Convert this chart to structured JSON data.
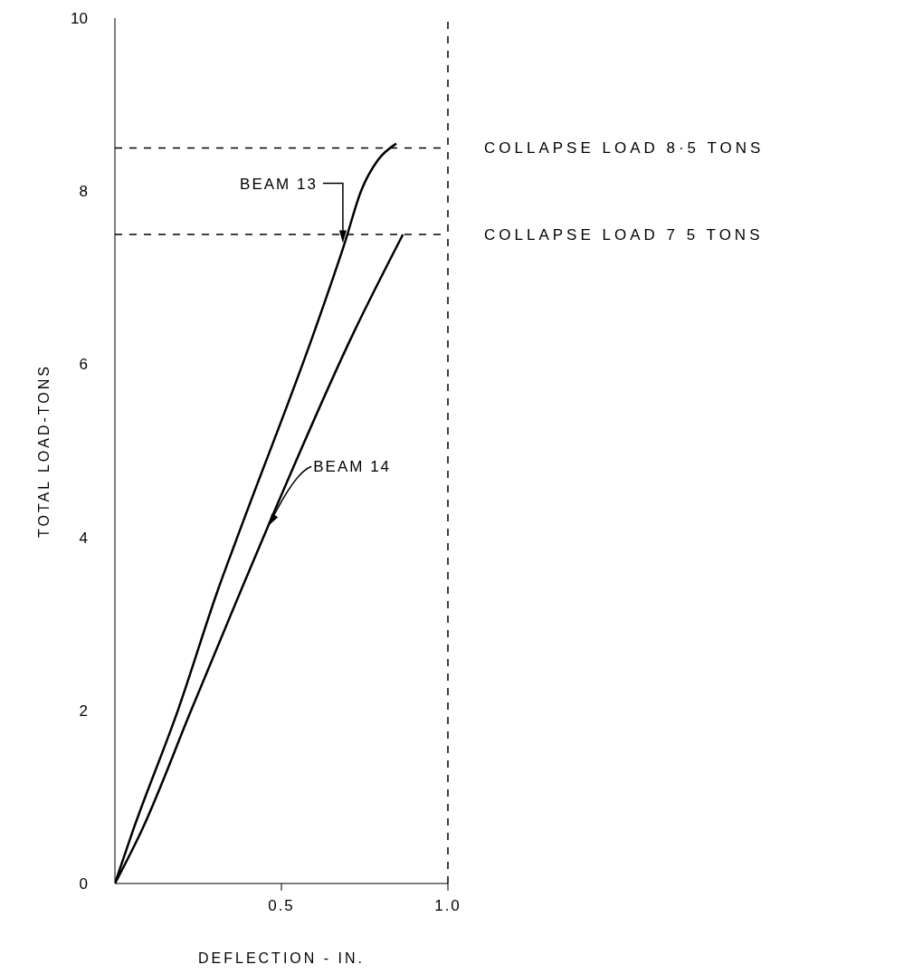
{
  "chart_data": {
    "type": "line",
    "xlabel": "DEFLECTION - IN.",
    "ylabel": "TOTAL LOAD-TONS",
    "xlim": [
      0,
      1
    ],
    "xticks": [
      {
        "value": 0.5,
        "label": "0.5"
      },
      {
        "value": 1,
        "label": "1.0"
      }
    ],
    "ylim": [
      0,
      10
    ],
    "yticks": [
      0,
      2,
      4,
      6,
      8,
      10
    ],
    "marker": "none",
    "line_style": "solid",
    "series": [
      {
        "color": "#000000",
        "x": [
          0,
          0.054,
          0.19,
          0.31,
          0.38,
          0.6,
          0.69,
          0.74,
          0.79,
          0.845
        ],
        "values": [
          0,
          0.61,
          2.01,
          3.4,
          4.13,
          6.39,
          7.4,
          8.01,
          8.36,
          8.55
        ]
      },
      {
        "color": "#000000",
        "x": [
          0,
          0.08,
          0.23,
          0.38,
          0.46,
          0.72,
          0.865
        ],
        "values": [
          0,
          0.61,
          2.01,
          3.4,
          4.13,
          6.39,
          7.5
        ]
      }
    ],
    "ref_lines": [
      {
        "axis": "y",
        "value": 8.5,
        "label": "COLLAPSE LOAD 8·5 TONS",
        "line_style": "dashed",
        "color": "#000000"
      },
      {
        "axis": "y",
        "value": 7.5,
        "label": "COLLAPSE LOAD 7 5 TONS",
        "line_style": "dashed",
        "color": "#000000"
      },
      {
        "axis": "x",
        "value": 1,
        "line_style": "dashed",
        "color": "#000000"
      }
    ],
    "annotations": [
      {
        "text": "BEAM 13",
        "x": 0.69,
        "y": 7.4
      },
      {
        "text": "BEAM 14",
        "x": 0.46,
        "y": 4.13
      }
    ]
  }
}
